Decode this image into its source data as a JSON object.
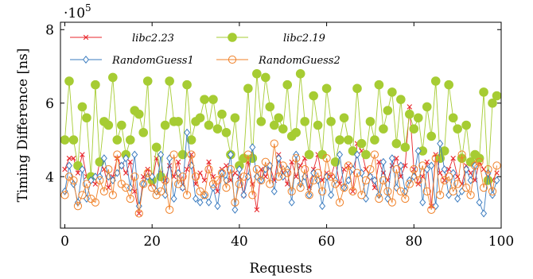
{
  "chart_data": {
    "type": "line",
    "xlabel": "Requests",
    "ylabel": "Timing Difference [ns]",
    "y_multiplier": "·10",
    "y_multiplier_exp": "5",
    "xlim": [
      -1,
      100
    ],
    "ylim": [
      2.6,
      8.2
    ],
    "x_ticks": [
      0,
      20,
      40,
      60,
      80,
      100
    ],
    "y_ticks": [
      4,
      6,
      8
    ],
    "legend": "top-left, two columns",
    "grid": false,
    "series": [
      {
        "name": "libc2.23",
        "color": "#e8262b",
        "marker": "x",
        "values": [
          4.2,
          4.5,
          4.5,
          4.1,
          4.6,
          4.0,
          3.9,
          3.8,
          4.4,
          4.2,
          3.7,
          4.0,
          4.5,
          4.3,
          4.1,
          4.4,
          3.6,
          3.0,
          4.0,
          4.2,
          3.8,
          4.5,
          4.1,
          3.9,
          4.3,
          4.0,
          4.4,
          3.7,
          4.2,
          4.6,
          3.8,
          4.1,
          3.9,
          4.4,
          4.0,
          3.6,
          4.2,
          4.3,
          3.9,
          4.1,
          4.0,
          3.5,
          4.4,
          3.8,
          3.1,
          4.2,
          4.0,
          4.3,
          3.9,
          4.6,
          4.1,
          3.8,
          4.4,
          4.0,
          4.3,
          4.5,
          3.7,
          4.2,
          4.6,
          3.9,
          4.1,
          4.0,
          4.4,
          3.8,
          4.2,
          4.3,
          3.6,
          4.9,
          4.7,
          4.2,
          4.0,
          3.7,
          4.4,
          4.1,
          3.9,
          4.3,
          4.5,
          4.0,
          4.3,
          5.9,
          4.2,
          3.8,
          4.0,
          4.4,
          3.2,
          4.6,
          4.1,
          3.9,
          4.2,
          4.5,
          4.0,
          3.8,
          4.3,
          4.1,
          3.9,
          4.4,
          4.2,
          4.0,
          3.9,
          4.1
        ]
      },
      {
        "name": "libc2.19",
        "color": "#a6cc33",
        "marker": "circle",
        "values": [
          5.0,
          6.6,
          5.0,
          4.3,
          5.9,
          5.6,
          4.0,
          6.5,
          4.4,
          5.5,
          5.4,
          6.7,
          5.0,
          5.4,
          4.6,
          5.0,
          5.8,
          5.7,
          5.2,
          6.6,
          3.9,
          4.8,
          4.0,
          5.4,
          6.6,
          5.5,
          5.5,
          4.6,
          6.5,
          5.0,
          5.5,
          5.6,
          6.1,
          5.4,
          6.1,
          5.3,
          5.7,
          5.2,
          4.6,
          5.6,
          4.3,
          4.5,
          6.4,
          4.5,
          6.8,
          5.5,
          6.7,
          5.9,
          5.4,
          5.6,
          5.3,
          6.5,
          5.1,
          5.2,
          6.8,
          5.5,
          4.6,
          6.2,
          5.4,
          4.6,
          6.4,
          5.5,
          4.4,
          5.0,
          5.6,
          5.0,
          4.7,
          6.4,
          4.9,
          4.6,
          5.5,
          5.0,
          6.5,
          5.3,
          5.8,
          6.3,
          4.9,
          6.1,
          4.8,
          5.7,
          5.3,
          5.6,
          4.7,
          5.9,
          5.1,
          6.6,
          4.5,
          4.7,
          6.5,
          5.6,
          5.3,
          4.5,
          5.4,
          4.4,
          4.6,
          4.5,
          6.3,
          3.9,
          6.0,
          6.2
        ]
      },
      {
        "name": "RandomGuess1",
        "color": "#3a7bbf",
        "marker": "diamond",
        "values": [
          3.6,
          4.3,
          3.8,
          3.3,
          4.2,
          3.4,
          3.9,
          4.0,
          4.0,
          4.5,
          4.0,
          3.9,
          4.1,
          4.3,
          4.5,
          3.7,
          4.6,
          3.2,
          3.8,
          4.0,
          4.0,
          3.6,
          4.6,
          3.5,
          4.5,
          3.4,
          4.1,
          3.7,
          5.2,
          4.3,
          3.4,
          3.3,
          3.5,
          3.3,
          3.7,
          3.2,
          4.1,
          3.9,
          4.6,
          3.1,
          4.2,
          3.5,
          4.0,
          4.8,
          4.0,
          3.9,
          4.2,
          4.3,
          3.6,
          4.5,
          4.0,
          4.2,
          3.3,
          4.6,
          3.8,
          4.0,
          3.5,
          4.1,
          3.9,
          3.2,
          4.0,
          3.5,
          3.9,
          4.6,
          3.7,
          3.9,
          4.2,
          4.6,
          4.1,
          3.4,
          4.0,
          3.9,
          3.5,
          4.4,
          3.4,
          4.5,
          3.7,
          4.3,
          3.6,
          3.9,
          4.0,
          4.7,
          3.3,
          4.2,
          4.3,
          3.2,
          4.9,
          4.2,
          3.5,
          4.1,
          3.4,
          3.6,
          4.2,
          3.9,
          4.3,
          3.3,
          3.0,
          4.1,
          3.5,
          3.9
        ]
      },
      {
        "name": "RandomGuess2",
        "color": "#f0822a",
        "marker": "circle-open",
        "values": [
          3.5,
          4.0,
          3.9,
          3.2,
          3.5,
          3.8,
          3.4,
          3.3,
          3.9,
          3.6,
          4.2,
          3.5,
          4.6,
          3.8,
          3.7,
          3.4,
          4.0,
          3.0,
          3.8,
          4.1,
          3.7,
          3.5,
          3.6,
          3.9,
          3.1,
          4.6,
          3.8,
          4.0,
          3.5,
          4.6,
          4.0,
          3.6,
          3.5,
          4.2,
          3.8,
          3.9,
          4.1,
          3.7,
          4.2,
          3.3,
          3.8,
          4.0,
          4.6,
          3.5,
          4.2,
          3.9,
          4.4,
          3.8,
          4.9,
          4.0,
          4.3,
          4.1,
          3.6,
          4.5,
          3.7,
          4.2,
          3.5,
          3.9,
          4.1,
          3.6,
          4.5,
          4.0,
          3.8,
          3.3,
          3.7,
          4.3,
          3.6,
          4.1,
          3.5,
          3.9,
          4.2,
          4.6,
          3.4,
          3.9,
          3.6,
          3.3,
          4.2,
          3.6,
          3.4,
          3.8,
          4.2,
          3.9,
          4.3,
          3.6,
          3.1,
          4.5,
          3.5,
          3.9,
          4.0,
          3.6,
          3.8,
          4.6,
          3.7,
          3.5,
          4.3,
          4.4,
          3.7,
          4.2,
          3.6,
          4.3
        ]
      }
    ]
  }
}
